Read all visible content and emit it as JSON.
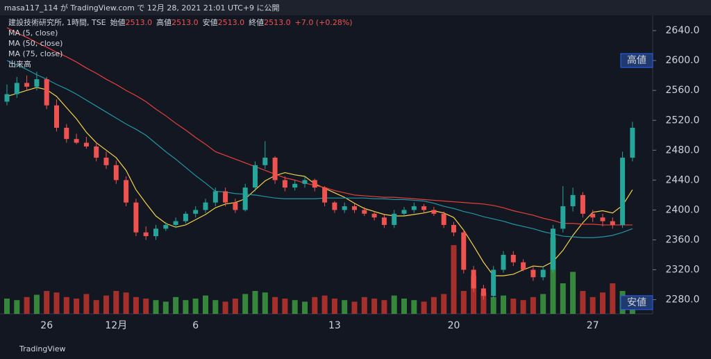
{
  "header": {
    "publisher": "masa117_114 が TradingView.com で 12月 28, 2021 21:01 UTC+9 に公開",
    "footer": "TradingView"
  },
  "chart_data": {
    "type": "candlestick",
    "legend": {
      "symbol": "建設技術研究所, 1時間, TSE",
      "ohlc": [
        {
          "label": "始値",
          "value": "2513.0"
        },
        {
          "label": "高値",
          "value": "2513.0"
        },
        {
          "label": "安値",
          "value": "2513.0"
        },
        {
          "label": "終値",
          "value": "2513.0"
        }
      ],
      "change": "+7.0 (+0.28%)",
      "studies": [
        "MA (5, close)",
        "MA (50, close)",
        "MA (75, close)",
        "出来高"
      ]
    },
    "categories": [
      null,
      null,
      null,
      null,
      "26",
      null,
      null,
      null,
      null,
      null,
      null,
      "12月",
      null,
      null,
      null,
      null,
      null,
      null,
      null,
      "6",
      null,
      null,
      null,
      null,
      null,
      null,
      null,
      null,
      null,
      null,
      null,
      null,
      null,
      "13",
      null,
      null,
      null,
      null,
      null,
      null,
      null,
      null,
      null,
      null,
      null,
      "20",
      null,
      null,
      null,
      null,
      null,
      null,
      null,
      null,
      null,
      null,
      null,
      null,
      null,
      "27",
      null,
      null,
      null,
      null
    ],
    "open": [
      2545,
      2555,
      2570,
      2565,
      2575,
      2540,
      2510,
      2495,
      2490,
      2485,
      2470,
      2460,
      2440,
      2410,
      2370,
      2365,
      2375,
      2380,
      2385,
      2395,
      2400,
      2410,
      2425,
      2410,
      2400,
      2430,
      2460,
      2470,
      2440,
      2430,
      2435,
      2440,
      2430,
      2410,
      2400,
      2405,
      2400,
      2395,
      2390,
      2380,
      2395,
      2400,
      2405,
      2400,
      2395,
      2380,
      2370,
      2320,
      2295,
      2285,
      2320,
      2340,
      2330,
      2320,
      2310,
      2320,
      2375,
      2405,
      2420,
      2395,
      2390,
      2385,
      2380,
      2470
    ],
    "high": [
      2568,
      2578,
      2580,
      2585,
      2578,
      2548,
      2515,
      2502,
      2498,
      2490,
      2478,
      2466,
      2445,
      2415,
      2378,
      2380,
      2384,
      2390,
      2398,
      2405,
      2415,
      2430,
      2430,
      2415,
      2435,
      2465,
      2492,
      2472,
      2445,
      2440,
      2445,
      2442,
      2432,
      2412,
      2410,
      2408,
      2404,
      2398,
      2394,
      2400,
      2404,
      2410,
      2408,
      2404,
      2398,
      2384,
      2374,
      2325,
      2300,
      2325,
      2345,
      2345,
      2334,
      2324,
      2325,
      2380,
      2432,
      2430,
      2424,
      2400,
      2395,
      2390,
      2478,
      2518
    ],
    "low": [
      2540,
      2550,
      2560,
      2560,
      2535,
      2505,
      2490,
      2488,
      2482,
      2465,
      2455,
      2435,
      2405,
      2365,
      2360,
      2360,
      2372,
      2376,
      2382,
      2390,
      2396,
      2405,
      2405,
      2396,
      2398,
      2425,
      2455,
      2435,
      2425,
      2426,
      2430,
      2425,
      2405,
      2396,
      2396,
      2396,
      2392,
      2386,
      2376,
      2376,
      2392,
      2396,
      2396,
      2392,
      2376,
      2365,
      2315,
      2290,
      2280,
      2282,
      2316,
      2325,
      2318,
      2305,
      2306,
      2316,
      2370,
      2398,
      2390,
      2384,
      2378,
      2375,
      2376,
      2465
    ],
    "close": [
      2555,
      2570,
      2565,
      2575,
      2540,
      2510,
      2495,
      2490,
      2485,
      2470,
      2460,
      2440,
      2410,
      2370,
      2365,
      2375,
      2380,
      2385,
      2395,
      2400,
      2410,
      2425,
      2410,
      2400,
      2430,
      2460,
      2470,
      2440,
      2430,
      2435,
      2440,
      2430,
      2410,
      2400,
      2405,
      2400,
      2395,
      2390,
      2380,
      2395,
      2400,
      2405,
      2400,
      2395,
      2380,
      2370,
      2320,
      2295,
      2285,
      2320,
      2340,
      2330,
      2320,
      2310,
      2320,
      2375,
      2405,
      2420,
      2395,
      2390,
      2385,
      2380,
      2470,
      2510
    ],
    "volume": [
      20,
      18,
      22,
      25,
      30,
      28,
      22,
      20,
      26,
      18,
      24,
      30,
      28,
      22,
      20,
      18,
      16,
      22,
      18,
      20,
      24,
      18,
      16,
      20,
      26,
      30,
      28,
      22,
      20,
      18,
      16,
      22,
      24,
      20,
      18,
      16,
      22,
      20,
      18,
      24,
      20,
      18,
      16,
      22,
      26,
      90,
      30,
      50,
      28,
      22,
      24,
      20,
      18,
      22,
      26,
      100,
      40,
      55,
      30,
      22,
      28,
      40,
      30,
      20
    ],
    "vlim": [
      0,
      100
    ],
    "series": [
      {
        "name": "MA (5, close)",
        "color": "#f7d24a",
        "values": [
          2552,
          2556,
          2560,
          2564,
          2561,
          2552,
          2537,
          2522,
          2504,
          2490,
          2480,
          2470,
          2453,
          2427,
          2409,
          2392,
          2382,
          2377,
          2380,
          2387,
          2394,
          2403,
          2408,
          2410,
          2415,
          2427,
          2439,
          2446,
          2450,
          2447,
          2445,
          2435,
          2429,
          2423,
          2417,
          2409,
          2402,
          2398,
          2394,
          2392,
          2392,
          2394,
          2396,
          2399,
          2396,
          2390,
          2373,
          2352,
          2330,
          2312,
          2312,
          2314,
          2320,
          2325,
          2324,
          2331,
          2346,
          2366,
          2383,
          2397,
          2399,
          2396,
          2406,
          2427
        ]
      },
      {
        "name": "MA (50, close)",
        "color": "#2196a6",
        "values": [
          2600,
          2594,
          2588,
          2581,
          2575,
          2568,
          2562,
          2555,
          2547,
          2539,
          2531,
          2523,
          2515,
          2508,
          2500,
          2489,
          2478,
          2468,
          2457,
          2446,
          2436,
          2425,
          2424,
          2422,
          2421,
          2420,
          2418,
          2416,
          2415,
          2415,
          2415,
          2415,
          2416,
          2416,
          2416,
          2416,
          2416,
          2415,
          2415,
          2414,
          2414,
          2413,
          2412,
          2409,
          2405,
          2402,
          2398,
          2395,
          2391,
          2388,
          2385,
          2381,
          2378,
          2375,
          2371,
          2368,
          2365,
          2364,
          2363,
          2363,
          2364,
          2366,
          2370,
          2375
        ]
      },
      {
        "name": "MA (75, close)",
        "color": "#e8403a",
        "values": [
          2644,
          2637,
          2631,
          2624,
          2618,
          2611,
          2605,
          2598,
          2590,
          2583,
          2575,
          2568,
          2560,
          2553,
          2545,
          2535,
          2526,
          2516,
          2507,
          2497,
          2488,
          2478,
          2473,
          2468,
          2463,
          2458,
          2453,
          2448,
          2443,
          2440,
          2436,
          2433,
          2430,
          2426,
          2423,
          2420,
          2419,
          2418,
          2417,
          2417,
          2416,
          2415,
          2414,
          2413,
          2412,
          2411,
          2410,
          2409,
          2408,
          2406,
          2403,
          2399,
          2396,
          2393,
          2389,
          2386,
          2382,
          2382,
          2381,
          2381,
          2380,
          2380,
          2380,
          2380
        ]
      }
    ],
    "annotations": [
      {
        "text": "高値",
        "value": 2600
      },
      {
        "text": "安値",
        "value": 2276
      }
    ],
    "ylim": [
      2261,
      2681
    ],
    "yticks": [
      {
        "value": 2280,
        "label": "2280.0"
      },
      {
        "value": 2320,
        "label": "2320.0"
      },
      {
        "value": 2360,
        "label": "2360.0"
      },
      {
        "value": 2400,
        "label": "2400.0"
      },
      {
        "value": 2440,
        "label": "2440.0"
      },
      {
        "value": 2480,
        "label": "2480.0"
      },
      {
        "value": 2520,
        "label": "2520.0"
      },
      {
        "value": 2560,
        "label": "2560.0"
      },
      {
        "value": 2600,
        "label": "2600.0"
      },
      {
        "value": 2640,
        "label": "2640.0"
      }
    ],
    "up_color": "#26a69a",
    "down_color": "#ef5350"
  }
}
